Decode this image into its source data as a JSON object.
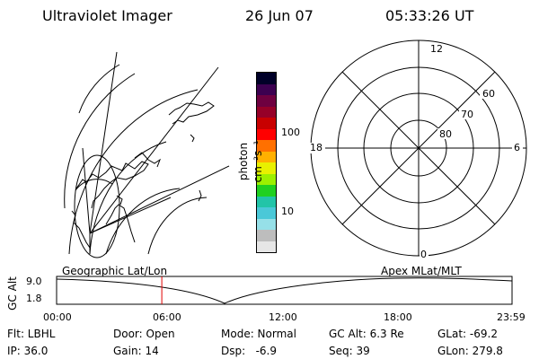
{
  "header": {
    "title": "Ultraviolet Imager",
    "date": "26 Jun 07",
    "time": "05:33:26 UT"
  },
  "colorbar": {
    "unit_label": "photon cm⁻²s⁻¹",
    "tick_100": "100",
    "tick_10": "10",
    "colors": [
      "#e6e6e6",
      "#bdbdbd",
      "#96e0e8",
      "#4ac8d8",
      "#22c4a8",
      "#20d020",
      "#9cf000",
      "#e8f000",
      "#ffb000",
      "#ff7000",
      "#ff0000",
      "#c80000",
      "#960028",
      "#6e0040",
      "#3c0050",
      "#000028"
    ]
  },
  "polar": {
    "lat_labels": [
      "80",
      "70",
      "60"
    ],
    "mlt_labels": {
      "top": "12",
      "bottom": "0",
      "left": "18",
      "right": "6"
    }
  },
  "timeline": {
    "left_map_label": "Geographic Lat/Lon",
    "right_map_label": "Apex MLat/MLT",
    "axis_title": "GC Alt",
    "y_max": "9.0",
    "y_min": "1.8",
    "time_ticks": [
      "00:00",
      "06:00",
      "12:00",
      "18:00",
      "23:59"
    ],
    "current_time_fraction": 0.231,
    "marker_color": "#e00000"
  },
  "footer": {
    "flt": "Flt: LBHL",
    "ip": "IP: 36.0",
    "door": "Door: Open",
    "gain": "Gain: 14",
    "mode": "Mode: Normal",
    "dsp": "Dsp:   -6.9",
    "gc_alt": "GC Alt: 6.3 Re",
    "seq": "Seq: 39",
    "glat": "GLat: -69.2",
    "glon": "GLon: 279.8"
  }
}
